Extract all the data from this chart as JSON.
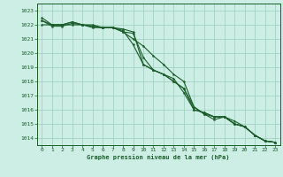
{
  "title": "Graphe pression niveau de la mer (hPa)",
  "background_color": "#cceee4",
  "grid_color": "#99ccbb",
  "line_color": "#1a5c2a",
  "text_color": "#1a5c2a",
  "xlim": [
    -0.5,
    23.5
  ],
  "ylim": [
    1013.5,
    1023.5
  ],
  "yticks": [
    1014,
    1015,
    1016,
    1017,
    1018,
    1019,
    1020,
    1021,
    1022,
    1023
  ],
  "xticks": [
    0,
    1,
    2,
    3,
    4,
    5,
    6,
    7,
    8,
    9,
    10,
    11,
    12,
    13,
    14,
    15,
    16,
    17,
    18,
    19,
    20,
    21,
    22,
    23
  ],
  "series": [
    [
      1022.5,
      1022.0,
      1022.0,
      1022.0,
      1022.0,
      1021.8,
      1021.8,
      1021.8,
      1021.5,
      1021.4,
      1019.7,
      1018.8,
      1018.5,
      1018.2,
      1017.2,
      1016.0,
      1015.8,
      1015.5,
      1015.5,
      1015.2,
      1014.8,
      1014.2,
      1013.8,
      1013.7
    ],
    [
      1022.3,
      1022.0,
      1022.0,
      1022.2,
      1022.0,
      1021.9,
      1021.8,
      1021.8,
      1021.6,
      1020.6,
      1019.2,
      1018.8,
      1018.5,
      1018.0,
      1017.5,
      1016.2,
      1015.7,
      1015.5,
      1015.5,
      1015.0,
      1014.8,
      1014.2,
      1013.8,
      1013.7
    ],
    [
      1022.0,
      1022.0,
      1022.0,
      1022.2,
      1022.0,
      1022.0,
      1021.8,
      1021.8,
      1021.7,
      1021.5,
      1019.2,
      1018.8,
      1018.5,
      1018.0,
      1017.5,
      1016.0,
      1015.8,
      1015.5,
      1015.5,
      1015.0,
      1014.8,
      1014.2,
      1013.8,
      1013.7
    ],
    [
      1022.3,
      1021.9,
      1021.9,
      1022.1,
      1022.0,
      1021.9,
      1021.8,
      1021.8,
      1021.5,
      1021.0,
      1020.5,
      1019.8,
      1019.2,
      1018.5,
      1018.0,
      1016.2,
      1015.7,
      1015.3,
      1015.5,
      1015.0,
      1014.8,
      1014.2,
      1013.8,
      1013.7
    ]
  ]
}
